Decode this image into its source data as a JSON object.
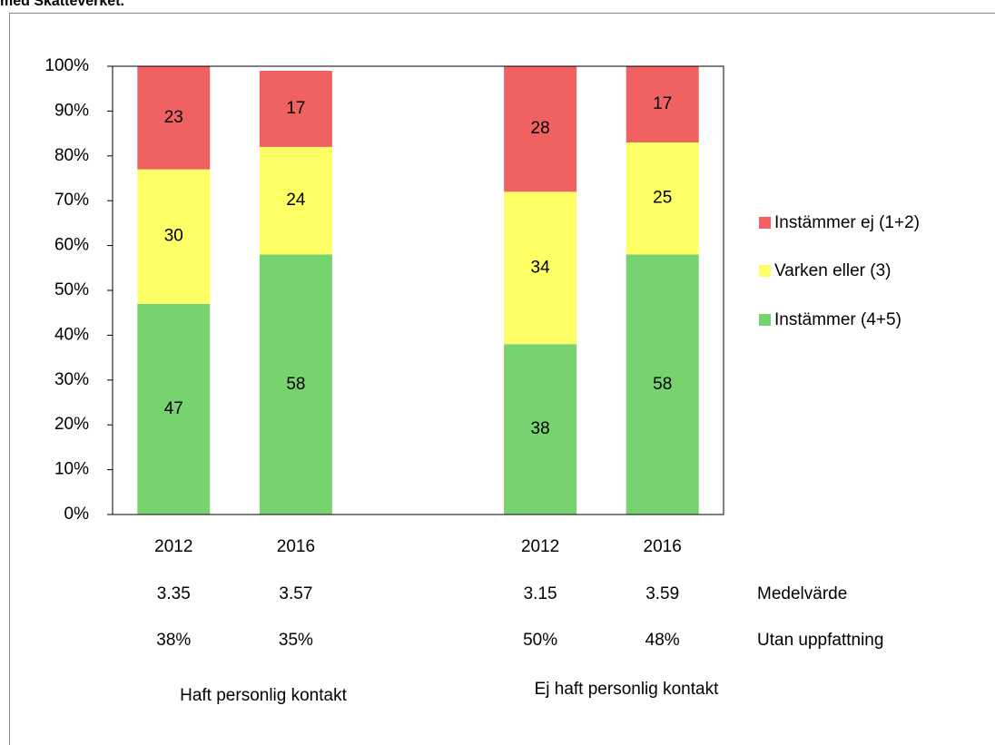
{
  "chart_data": {
    "type": "bar",
    "stacked": true,
    "title": "med Skatteverket.",
    "categories": [
      "2012",
      "2016",
      null,
      "2012",
      "2016"
    ],
    "series": [
      {
        "name": "Instämmer (4+5)",
        "color": "#77d36f",
        "values": [
          47,
          58,
          null,
          38,
          58
        ]
      },
      {
        "name": "Varken eller (3)",
        "color": "#ffff66",
        "values": [
          30,
          24,
          null,
          34,
          25
        ]
      },
      {
        "name": "Instämmer ej (1+2)",
        "color": "#f06262",
        "values": [
          23,
          17,
          null,
          28,
          17
        ]
      }
    ],
    "ylim": [
      0,
      100
    ],
    "yticks": [
      {
        "value": 0,
        "label": "0%"
      },
      {
        "value": 10,
        "label": "10%"
      },
      {
        "value": 20,
        "label": "20%"
      },
      {
        "value": 30,
        "label": "30%"
      },
      {
        "value": 40,
        "label": "40%"
      },
      {
        "value": 50,
        "label": "50%"
      },
      {
        "value": 60,
        "label": "60%"
      },
      {
        "value": 70,
        "label": "70%"
      },
      {
        "value": 80,
        "label": "80%"
      },
      {
        "value": 90,
        "label": "90%"
      },
      {
        "value": 100,
        "label": "100%"
      }
    ],
    "rows": [
      {
        "label": "Medelvärde",
        "values": [
          "3.35",
          "3.57",
          null,
          "3.15",
          "3.59"
        ]
      },
      {
        "label": "Utan uppfattning",
        "values": [
          "38%",
          "35%",
          null,
          "50%",
          "48%"
        ]
      }
    ],
    "groups": [
      "Haft personlig kontakt",
      "Ej haft personlig kontakt"
    ],
    "legend": "right"
  }
}
